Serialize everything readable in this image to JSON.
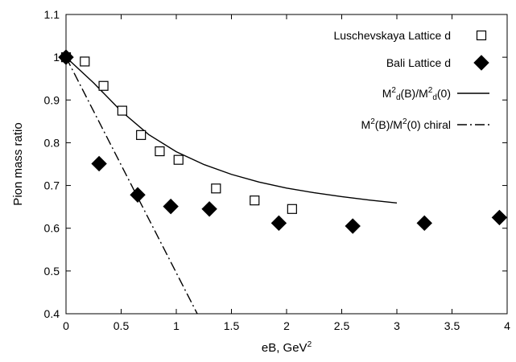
{
  "chart_data": {
    "type": "scatter",
    "xlabel": "eB, GeV",
    "xlabel_sup": "2",
    "ylabel": "Pion mass ratio",
    "xlim": [
      0,
      4
    ],
    "ylim": [
      0.4,
      1.1
    ],
    "xticks": [
      "0",
      "0.5",
      "1",
      "1.5",
      "2",
      "2.5",
      "3",
      "3.5",
      "4"
    ],
    "yticks": [
      "0.4",
      "0.5",
      "0.6",
      "0.7",
      "0.8",
      "0.9",
      "1",
      "1.1"
    ],
    "legend_position": "top-right",
    "series": [
      {
        "name": "Luschevskaya Lattice d",
        "marker": "open-square",
        "x": [
          0,
          0.17,
          0.34,
          0.51,
          0.68,
          0.85,
          1.02,
          1.36,
          1.71,
          2.05
        ],
        "y": [
          1.0,
          0.99,
          0.933,
          0.875,
          0.818,
          0.78,
          0.76,
          0.693,
          0.665,
          0.645
        ]
      },
      {
        "name": "Bali Lattice d",
        "marker": "filled-diamond",
        "x": [
          0,
          0.3,
          0.65,
          0.95,
          1.3,
          1.93,
          2.6,
          3.25,
          3.93
        ],
        "y": [
          1.0,
          0.751,
          0.678,
          0.651,
          0.645,
          0.612,
          0.605,
          0.612,
          0.625
        ]
      },
      {
        "name_parts": [
          "M",
          "2",
          "d",
          "(B)/M",
          "2",
          "d",
          "(0)"
        ],
        "style": "solid",
        "x": [
          0,
          0.25,
          0.5,
          0.75,
          1.0,
          1.25,
          1.5,
          1.75,
          2.0,
          2.25,
          2.5,
          2.75,
          3.0
        ],
        "y": [
          1.0,
          0.94,
          0.874,
          0.819,
          0.779,
          0.749,
          0.726,
          0.708,
          0.694,
          0.683,
          0.674,
          0.666,
          0.659
        ]
      },
      {
        "name_parts": [
          "M",
          "2",
          "(B)/M",
          "2",
          "(0) chiral"
        ],
        "style": "dash-dot",
        "x": [
          0,
          1.19
        ],
        "y": [
          1.0,
          0.4
        ]
      }
    ]
  }
}
